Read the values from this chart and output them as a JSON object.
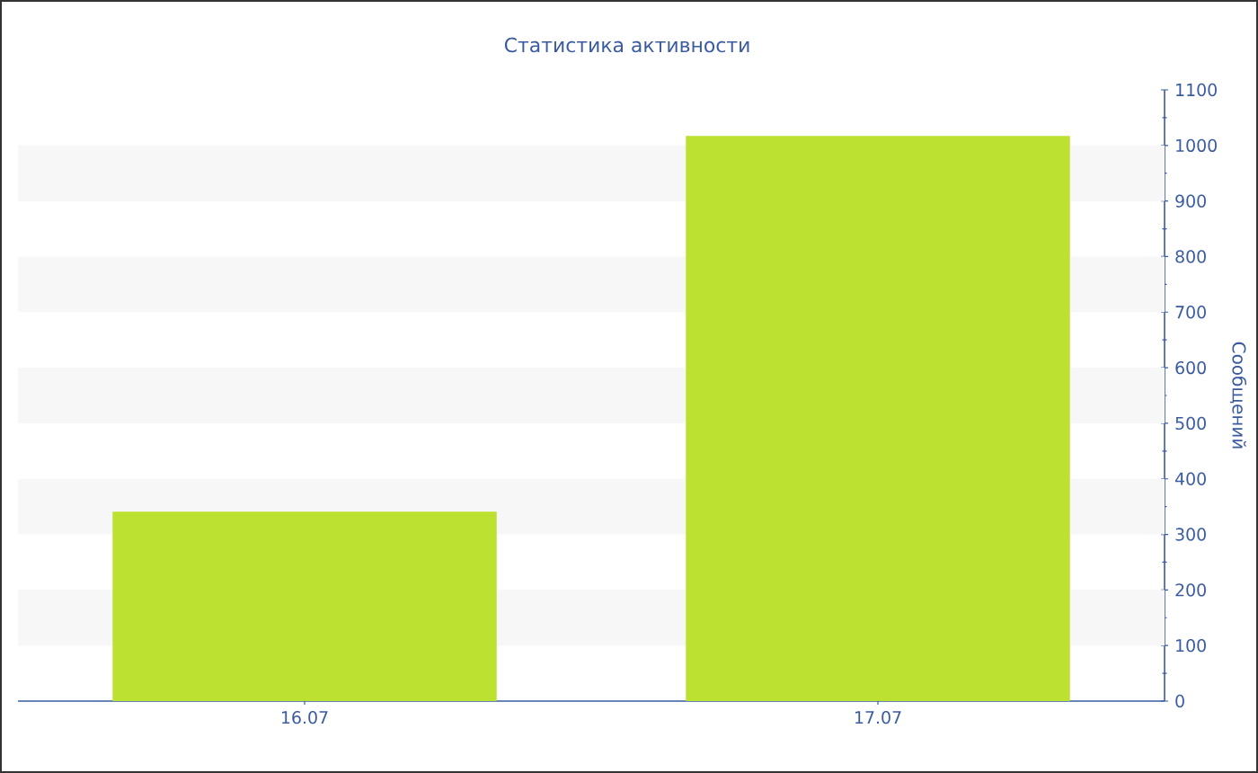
{
  "chart_data": {
    "type": "bar",
    "title": "Статистика активности",
    "ylabel": "Сообщений",
    "categories": [
      "16.07",
      "17.07"
    ],
    "series": [
      {
        "color": "#bde130",
        "values": [
          341,
          1017
        ]
      }
    ],
    "ylim": [
      0,
      1100
    ],
    "yticks": [
      0,
      100,
      200,
      300,
      400,
      500,
      600,
      700,
      800,
      900,
      1000,
      1100
    ],
    "bands": [
      {
        "axis": "y",
        "from": 100,
        "to": 200,
        "color": "#f7f7f7"
      },
      {
        "axis": "y",
        "from": 300,
        "to": 400,
        "color": "#f7f7f7"
      },
      {
        "axis": "y",
        "from": 500,
        "to": 600,
        "color": "#f7f7f7"
      },
      {
        "axis": "y",
        "from": 700,
        "to": 800,
        "color": "#f7f7f7"
      },
      {
        "axis": "y",
        "from": 900,
        "to": 1000,
        "color": "#f7f7f7"
      }
    ]
  }
}
